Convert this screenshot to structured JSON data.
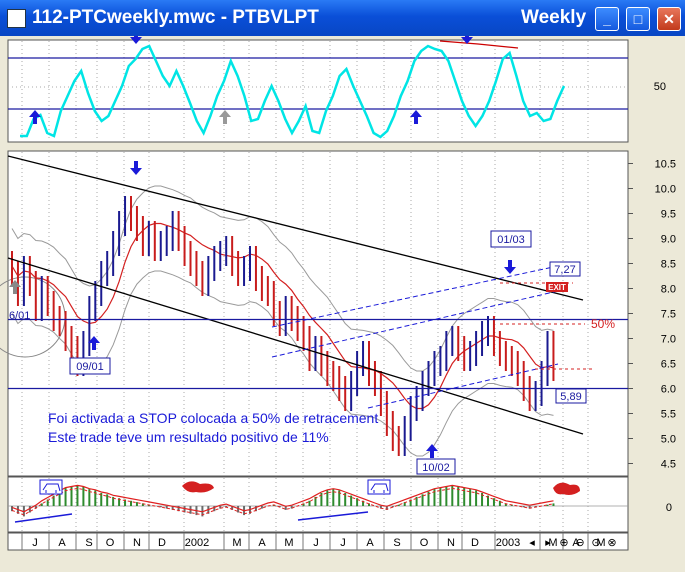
{
  "window": {
    "title": "112-PTCweekly.mwc - PTBVLPT",
    "period": "Weekly",
    "minimize_glyph": "_",
    "maximize_glyph": "□",
    "close_glyph": "✕"
  },
  "chart_data": [
    {
      "type": "line",
      "panel": "oscillator",
      "y_ticks": [
        50
      ],
      "lines": [
        {
          "name": "",
          "color": "#00E5E5"
        }
      ],
      "horizontal_levels": {
        "upper": 80,
        "lower": 20
      }
    },
    {
      "type": "candlestick",
      "panel": "price",
      "y_ticks": [
        4.5,
        5.0,
        5.5,
        6.0,
        6.5,
        7.0,
        7.5,
        8.0,
        8.5,
        9.0,
        9.5,
        10.0,
        10.5
      ],
      "ylim": [
        4.25,
        10.75
      ],
      "horizontal_levels": [
        7.38,
        6.0
      ],
      "labels": [
        {
          "text": "09/01",
          "marker": "up-arrow"
        },
        {
          "text": "01/03",
          "marker": "down-arrow"
        },
        {
          "text": "10/02",
          "marker": "up-arrow"
        },
        {
          "text": "7,27",
          "kind": "price-box"
        },
        {
          "text": "5,89",
          "kind": "price-box"
        },
        {
          "text": "50%",
          "kind": "retracement"
        },
        {
          "text": "EXIT",
          "kind": "exit-flag"
        },
        {
          "text": "6/01",
          "kind": "cut-label"
        }
      ],
      "annotation_lines": [
        "Foi activada a STOP colocada a 50% de retracement",
        "Este trade teve um resultado positivo de 11%"
      ]
    },
    {
      "type": "bar",
      "panel": "histogram",
      "y_ticks": [
        0
      ],
      "colors": {
        "positive": "#2E8B2E",
        "signal": "#E02020"
      }
    }
  ],
  "x_axis": {
    "ticks": [
      "J",
      "A",
      "S",
      "O",
      "N",
      "D",
      "2002",
      "M",
      "A",
      "M",
      "J",
      "J",
      "A",
      "S",
      "O",
      "N",
      "D",
      "2003",
      "M",
      "A",
      "M"
    ]
  },
  "toolbar": {
    "icons": [
      "scroll-left-icon",
      "scroll-right-icon",
      "zoom-in-icon",
      "zoom-out-icon",
      "reset-zoom-icon",
      "fit-zoom-icon"
    ]
  }
}
